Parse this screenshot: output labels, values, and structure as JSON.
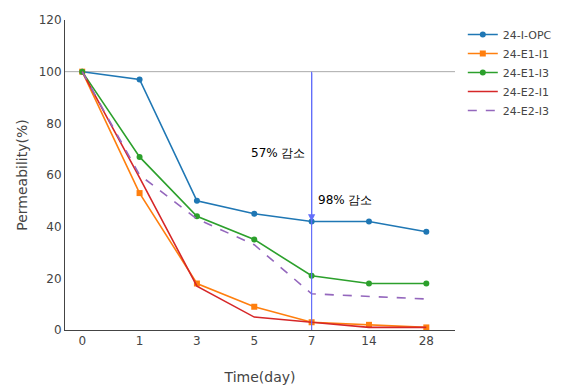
{
  "chart_data": {
    "type": "line",
    "x_label": "Time(day)",
    "y_label": "Permeability(%)",
    "categories": [
      "0",
      "1",
      "3",
      "5",
      "7",
      "14",
      "28"
    ],
    "series": [
      {
        "name": "24-I-OPC",
        "values": [
          100,
          97,
          50,
          45,
          42,
          42,
          38
        ],
        "marker": "circle",
        "line_style": "solid"
      },
      {
        "name": "24-E1-I1",
        "values": [
          100,
          53,
          18,
          9,
          3,
          2,
          1
        ],
        "marker": "square",
        "line_style": "solid"
      },
      {
        "name": "24-E1-I3",
        "values": [
          100,
          67,
          44,
          35,
          21,
          18,
          18
        ],
        "marker": "circle",
        "line_style": "solid"
      },
      {
        "name": "24-E2-I1",
        "values": [
          100,
          59,
          17,
          5,
          3,
          1,
          1
        ],
        "line_style": "solid"
      },
      {
        "name": "24-E2-I3",
        "values": [
          100,
          60,
          43,
          33,
          14,
          13,
          12
        ],
        "line_style": "dash"
      }
    ],
    "ylim": [
      0,
      120
    ],
    "yticks": [
      0,
      20,
      40,
      60,
      80,
      100,
      120
    ],
    "grid": false,
    "legend": "right",
    "reference_line": 100,
    "arrow": {
      "category": "7",
      "from": 100,
      "to": 42
    },
    "annotations": [
      {
        "text": "57% 감소",
        "category": "7",
        "y": 65,
        "side": "left"
      },
      {
        "text": "98% 감소",
        "category": "7",
        "y": 47,
        "side": "right"
      }
    ]
  }
}
